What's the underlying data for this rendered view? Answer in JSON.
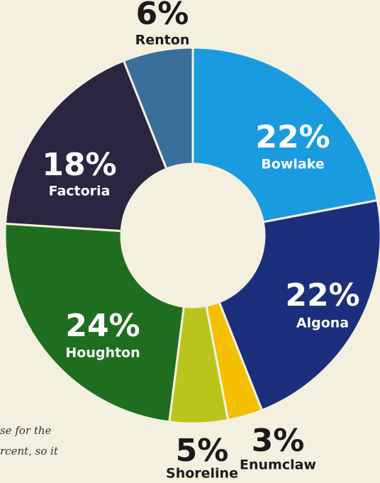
{
  "chart_data": {
    "type": "donut",
    "categories": [
      "Bowlake",
      "Algona",
      "Enumclaw",
      "Shoreline",
      "Houghton",
      "Factoria",
      "Renton"
    ],
    "values": [
      22,
      22,
      3,
      5,
      24,
      18,
      6
    ],
    "value_labels": [
      "22%",
      "22%",
      "3%",
      "5%",
      "24%",
      "18%",
      "6%"
    ],
    "colors": [
      "#1a9be0",
      "#1c2f7c",
      "#f4c000",
      "#b9c51c",
      "#1f6e20",
      "#2a2540",
      "#3b6f9b"
    ]
  },
  "fragments": [
    "se for the",
    "rcent, so it"
  ]
}
